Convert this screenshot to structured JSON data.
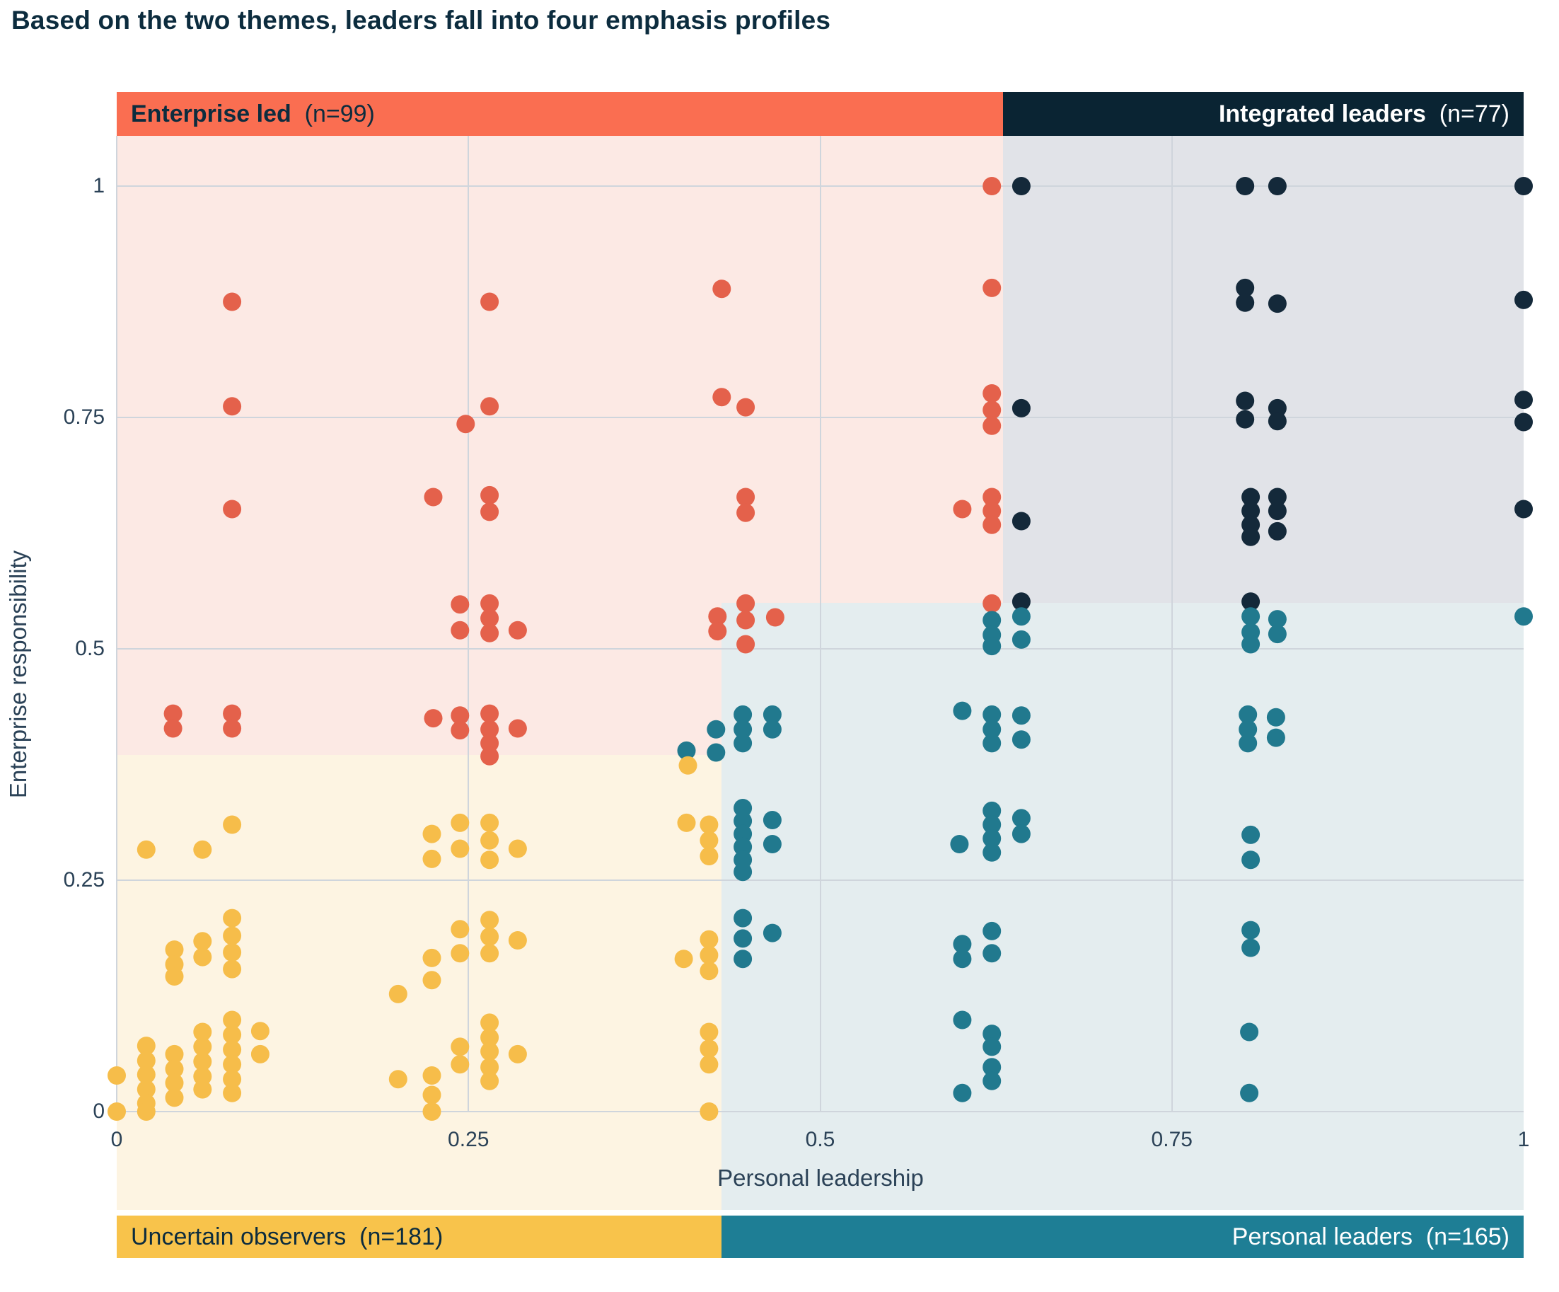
{
  "title": "Based on the two themes, leaders fall into four emphasis profiles",
  "axes": {
    "x_label": "Personal leadership",
    "y_label": "Enterprise responsibility",
    "x_ticks": [
      {
        "value": 0,
        "label": "0"
      },
      {
        "value": 0.25,
        "label": "0.25"
      },
      {
        "value": 0.5,
        "label": "0.5"
      },
      {
        "value": 0.75,
        "label": "0.75"
      },
      {
        "value": 1,
        "label": "1"
      }
    ],
    "y_ticks": [
      {
        "value": 0,
        "label": "0"
      },
      {
        "value": 0.25,
        "label": "0.25"
      },
      {
        "value": 0.5,
        "label": "0.5"
      },
      {
        "value": 0.75,
        "label": "0.75"
      },
      {
        "value": 1,
        "label": "1"
      }
    ]
  },
  "quadrants": {
    "enterprise_led": {
      "name": "Enterprise led",
      "n_label": "(n=99)",
      "n": 99,
      "bar_color": "#fa6e51",
      "bg_color": "#fce9e4",
      "dot_color": "#e4614b"
    },
    "integrated_leaders": {
      "name": "Integrated leaders",
      "n_label": "(n=77)",
      "n": 77,
      "bar_color": "#0a2433",
      "bg_color": "#e1e3e8",
      "dot_color": "#14293a"
    },
    "uncertain_observers": {
      "name": "Uncertain observers",
      "n_label": "(n=181)",
      "n": 181,
      "bar_color": "#f8c34b",
      "bg_color": "#fdf4e2",
      "dot_color": "#f6bd4a"
    },
    "personal_leaders": {
      "name": "Personal leaders",
      "n_label": "(n=165)",
      "n": 165,
      "bar_color": "#1e7e95",
      "bg_color": "#e4edef",
      "dot_color": "#21798e"
    }
  },
  "chart_data": {
    "type": "scatter",
    "title": "Based on the two themes, leaders fall into four emphasis profiles",
    "xlabel": "Personal leadership",
    "ylabel": "Enterprise responsibility",
    "xlim": [
      0,
      1
    ],
    "ylim": [
      0,
      1
    ],
    "grid": true,
    "legend_position": "quadrant bars (top and bottom of plot)",
    "splits": {
      "x_split_top": 0.63,
      "x_split_bottom": 0.43,
      "y_split_left": 0.385,
      "y_split_right": 0.55
    },
    "series": [
      {
        "name": "Enterprise led",
        "n": 99,
        "color": "#e4614b",
        "points": [
          [
            0.04,
            0.43
          ],
          [
            0.04,
            0.414
          ],
          [
            0.082,
            0.875
          ],
          [
            0.082,
            0.762
          ],
          [
            0.082,
            0.651
          ],
          [
            0.082,
            0.43
          ],
          [
            0.082,
            0.414
          ],
          [
            0.225,
            0.664
          ],
          [
            0.225,
            0.425
          ],
          [
            0.244,
            0.548
          ],
          [
            0.244,
            0.52
          ],
          [
            0.244,
            0.428
          ],
          [
            0.244,
            0.412
          ],
          [
            0.248,
            0.743
          ],
          [
            0.265,
            0.875
          ],
          [
            0.265,
            0.762
          ],
          [
            0.265,
            0.666
          ],
          [
            0.265,
            0.648
          ],
          [
            0.265,
            0.549
          ],
          [
            0.265,
            0.533
          ],
          [
            0.265,
            0.517
          ],
          [
            0.265,
            0.43
          ],
          [
            0.265,
            0.413
          ],
          [
            0.265,
            0.398
          ],
          [
            0.265,
            0.384
          ],
          [
            0.285,
            0.52
          ],
          [
            0.285,
            0.414
          ],
          [
            0.43,
            0.889
          ],
          [
            0.43,
            0.772
          ],
          [
            0.427,
            0.535
          ],
          [
            0.427,
            0.519
          ],
          [
            0.447,
            0.761
          ],
          [
            0.447,
            0.664
          ],
          [
            0.447,
            0.647
          ],
          [
            0.447,
            0.549
          ],
          [
            0.447,
            0.531
          ],
          [
            0.447,
            0.505
          ],
          [
            0.468,
            0.534
          ],
          [
            0.601,
            0.651
          ],
          [
            0.622,
            1.0
          ],
          [
            0.622,
            0.89
          ],
          [
            0.622,
            0.776
          ],
          [
            0.622,
            0.758
          ],
          [
            0.622,
            0.741
          ],
          [
            0.622,
            0.664
          ],
          [
            0.622,
            0.649
          ],
          [
            0.622,
            0.634
          ],
          [
            0.622,
            0.549
          ]
        ]
      },
      {
        "name": "Integrated leaders",
        "n": 77,
        "color": "#14293a",
        "points": [
          [
            0.643,
            1.0
          ],
          [
            0.802,
            1.0
          ],
          [
            0.825,
            1.0
          ],
          [
            1.0,
            1.0
          ],
          [
            0.643,
            0.76
          ],
          [
            0.802,
            0.89
          ],
          [
            0.802,
            0.874
          ],
          [
            0.825,
            0.873
          ],
          [
            1.0,
            0.877
          ],
          [
            0.802,
            0.768
          ],
          [
            0.802,
            0.748
          ],
          [
            0.825,
            0.76
          ],
          [
            0.825,
            0.746
          ],
          [
            1.0,
            0.769
          ],
          [
            1.0,
            0.745
          ],
          [
            0.643,
            0.638
          ],
          [
            0.806,
            0.664
          ],
          [
            0.806,
            0.649
          ],
          [
            0.806,
            0.634
          ],
          [
            0.806,
            0.621
          ],
          [
            0.825,
            0.664
          ],
          [
            0.825,
            0.649
          ],
          [
            0.825,
            0.627
          ],
          [
            1.0,
            0.651
          ],
          [
            0.643,
            0.551
          ],
          [
            0.806,
            0.551
          ]
        ]
      },
      {
        "name": "Personal leaders",
        "n": 165,
        "color": "#21798e",
        "points": [
          [
            0.405,
            0.39
          ],
          [
            0.426,
            0.413
          ],
          [
            0.426,
            0.388
          ],
          [
            0.445,
            0.429
          ],
          [
            0.445,
            0.413
          ],
          [
            0.445,
            0.398
          ],
          [
            0.466,
            0.429
          ],
          [
            0.466,
            0.413
          ],
          [
            0.622,
            0.531
          ],
          [
            0.622,
            0.515
          ],
          [
            0.622,
            0.503
          ],
          [
            0.643,
            0.535
          ],
          [
            0.643,
            0.51
          ],
          [
            0.601,
            0.433
          ],
          [
            0.622,
            0.429
          ],
          [
            0.622,
            0.413
          ],
          [
            0.622,
            0.398
          ],
          [
            0.643,
            0.428
          ],
          [
            0.643,
            0.402
          ],
          [
            0.806,
            0.535
          ],
          [
            0.806,
            0.518
          ],
          [
            0.806,
            0.505
          ],
          [
            0.825,
            0.532
          ],
          [
            0.825,
            0.516
          ],
          [
            0.804,
            0.429
          ],
          [
            0.804,
            0.413
          ],
          [
            0.804,
            0.398
          ],
          [
            0.824,
            0.426
          ],
          [
            0.824,
            0.404
          ],
          [
            1.0,
            0.535
          ],
          [
            0.445,
            0.328
          ],
          [
            0.445,
            0.314
          ],
          [
            0.445,
            0.3
          ],
          [
            0.445,
            0.286
          ],
          [
            0.445,
            0.272
          ],
          [
            0.445,
            0.259
          ],
          [
            0.466,
            0.315
          ],
          [
            0.466,
            0.289
          ],
          [
            0.599,
            0.289
          ],
          [
            0.622,
            0.325
          ],
          [
            0.622,
            0.31
          ],
          [
            0.622,
            0.295
          ],
          [
            0.622,
            0.28
          ],
          [
            0.643,
            0.317
          ],
          [
            0.643,
            0.3
          ],
          [
            0.806,
            0.299
          ],
          [
            0.806,
            0.272
          ],
          [
            0.445,
            0.209
          ],
          [
            0.445,
            0.187
          ],
          [
            0.445,
            0.165
          ],
          [
            0.466,
            0.193
          ],
          [
            0.601,
            0.181
          ],
          [
            0.601,
            0.165
          ],
          [
            0.622,
            0.195
          ],
          [
            0.622,
            0.171
          ],
          [
            0.806,
            0.196
          ],
          [
            0.806,
            0.177
          ],
          [
            0.601,
            0.099
          ],
          [
            0.622,
            0.084
          ],
          [
            0.622,
            0.07
          ],
          [
            0.622,
            0.048
          ],
          [
            0.622,
            0.033
          ],
          [
            0.601,
            0.02
          ],
          [
            0.805,
            0.086
          ],
          [
            0.805,
            0.02
          ]
        ]
      },
      {
        "name": "Uncertain observers",
        "n": 181,
        "color": "#f6bd4a",
        "points": [
          [
            0.0,
            0.039
          ],
          [
            0.0,
            0.0
          ],
          [
            0.021,
            0.283
          ],
          [
            0.021,
            0.071
          ],
          [
            0.021,
            0.055
          ],
          [
            0.021,
            0.04
          ],
          [
            0.021,
            0.024
          ],
          [
            0.021,
            0.009
          ],
          [
            0.021,
            0.0
          ],
          [
            0.041,
            0.175
          ],
          [
            0.041,
            0.159
          ],
          [
            0.041,
            0.146
          ],
          [
            0.041,
            0.062
          ],
          [
            0.041,
            0.046
          ],
          [
            0.041,
            0.031
          ],
          [
            0.041,
            0.015
          ],
          [
            0.061,
            0.283
          ],
          [
            0.061,
            0.184
          ],
          [
            0.061,
            0.167
          ],
          [
            0.061,
            0.086
          ],
          [
            0.061,
            0.07
          ],
          [
            0.061,
            0.054
          ],
          [
            0.061,
            0.038
          ],
          [
            0.061,
            0.024
          ],
          [
            0.082,
            0.31
          ],
          [
            0.082,
            0.209
          ],
          [
            0.082,
            0.19
          ],
          [
            0.082,
            0.172
          ],
          [
            0.082,
            0.154
          ],
          [
            0.082,
            0.099
          ],
          [
            0.082,
            0.083
          ],
          [
            0.082,
            0.067
          ],
          [
            0.082,
            0.051
          ],
          [
            0.082,
            0.035
          ],
          [
            0.082,
            0.02
          ],
          [
            0.102,
            0.087
          ],
          [
            0.102,
            0.062
          ],
          [
            0.2,
            0.127
          ],
          [
            0.2,
            0.035
          ],
          [
            0.224,
            0.3
          ],
          [
            0.224,
            0.273
          ],
          [
            0.224,
            0.166
          ],
          [
            0.224,
            0.142
          ],
          [
            0.224,
            0.039
          ],
          [
            0.224,
            0.018
          ],
          [
            0.224,
            0.0
          ],
          [
            0.244,
            0.312
          ],
          [
            0.244,
            0.284
          ],
          [
            0.244,
            0.197
          ],
          [
            0.244,
            0.171
          ],
          [
            0.244,
            0.07
          ],
          [
            0.244,
            0.051
          ],
          [
            0.265,
            0.312
          ],
          [
            0.265,
            0.293
          ],
          [
            0.265,
            0.272
          ],
          [
            0.265,
            0.207
          ],
          [
            0.265,
            0.189
          ],
          [
            0.265,
            0.171
          ],
          [
            0.265,
            0.096
          ],
          [
            0.265,
            0.08
          ],
          [
            0.265,
            0.065
          ],
          [
            0.265,
            0.048
          ],
          [
            0.265,
            0.033
          ],
          [
            0.285,
            0.284
          ],
          [
            0.285,
            0.185
          ],
          [
            0.285,
            0.062
          ],
          [
            0.406,
            0.374
          ],
          [
            0.405,
            0.312
          ],
          [
            0.403,
            0.165
          ],
          [
            0.421,
            0.31
          ],
          [
            0.421,
            0.293
          ],
          [
            0.421,
            0.276
          ],
          [
            0.421,
            0.186
          ],
          [
            0.421,
            0.169
          ],
          [
            0.421,
            0.152
          ],
          [
            0.421,
            0.086
          ],
          [
            0.421,
            0.068
          ],
          [
            0.421,
            0.051
          ],
          [
            0.421,
            0.0
          ]
        ]
      }
    ]
  }
}
